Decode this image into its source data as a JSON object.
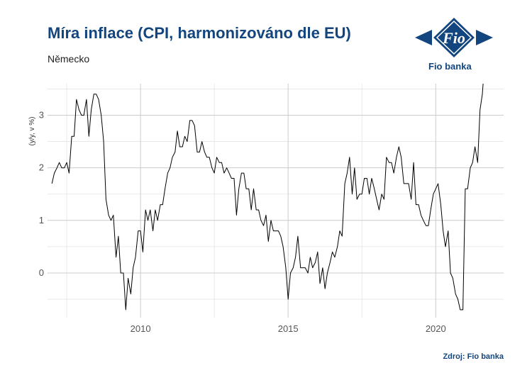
{
  "header": {
    "title": "Míra inflace (CPI, harmonizováno dle EU)",
    "subtitle": "Německo"
  },
  "logo": {
    "icon": "fio-logo-icon",
    "text": "Fio",
    "label": "Fio banka",
    "color": "#13457e"
  },
  "source": "Zdroj: Fio banka",
  "chart_data": {
    "type": "line",
    "title": "Míra inflace (CPI, harmonizováno dle EU)",
    "subtitle": "Německo",
    "xlabel": "",
    "ylabel": "(y/y, v %)",
    "xlim": [
      2006.85,
      2022.3
    ],
    "ylim": [
      -0.85,
      3.6
    ],
    "x_ticks": [
      2010,
      2015,
      2020
    ],
    "y_ticks": [
      0,
      1,
      2,
      3
    ],
    "grid": true,
    "legend": "none",
    "line_color": "#000000",
    "series": [
      {
        "x": [
          2007.0,
          2007.08,
          2007.17,
          2007.25,
          2007.33,
          2007.42,
          2007.5,
          2007.58,
          2007.67,
          2007.75,
          2007.83,
          2007.92,
          2008.0,
          2008.08,
          2008.17,
          2008.25,
          2008.33,
          2008.42,
          2008.5,
          2008.58,
          2008.67,
          2008.75,
          2008.83,
          2008.92,
          2009.0,
          2009.08,
          2009.17,
          2009.25,
          2009.33,
          2009.42,
          2009.5,
          2009.58,
          2009.67,
          2009.75,
          2009.83,
          2009.92,
          2010.0,
          2010.08,
          2010.17,
          2010.25,
          2010.33,
          2010.42,
          2010.5,
          2010.58,
          2010.67,
          2010.75,
          2010.83,
          2010.92,
          2011.0,
          2011.08,
          2011.17,
          2011.25,
          2011.33,
          2011.42,
          2011.5,
          2011.58,
          2011.67,
          2011.75,
          2011.83,
          2011.92,
          2012.0,
          2012.08,
          2012.17,
          2012.25,
          2012.33,
          2012.42,
          2012.5,
          2012.58,
          2012.67,
          2012.75,
          2012.83,
          2012.92,
          2013.0,
          2013.08,
          2013.17,
          2013.25,
          2013.33,
          2013.42,
          2013.5,
          2013.58,
          2013.67,
          2013.75,
          2013.83,
          2013.92,
          2014.0,
          2014.08,
          2014.17,
          2014.25,
          2014.33,
          2014.42,
          2014.5,
          2014.58,
          2014.67,
          2014.75,
          2014.83,
          2014.92,
          2015.0,
          2015.08,
          2015.17,
          2015.25,
          2015.33,
          2015.42,
          2015.5,
          2015.58,
          2015.67,
          2015.75,
          2015.83,
          2015.92,
          2016.0,
          2016.08,
          2016.17,
          2016.25,
          2016.33,
          2016.42,
          2016.5,
          2016.58,
          2016.67,
          2016.75,
          2016.83,
          2016.92,
          2017.0,
          2017.08,
          2017.17,
          2017.25,
          2017.33,
          2017.42,
          2017.5,
          2017.58,
          2017.67,
          2017.75,
          2017.83,
          2017.92,
          2018.0,
          2018.08,
          2018.17,
          2018.25,
          2018.33,
          2018.42,
          2018.5,
          2018.58,
          2018.67,
          2018.75,
          2018.83,
          2018.92,
          2019.0,
          2019.08,
          2019.17,
          2019.25,
          2019.33,
          2019.42,
          2019.5,
          2019.58,
          2019.67,
          2019.75,
          2019.83,
          2019.92,
          2020.0,
          2020.08,
          2020.17,
          2020.25,
          2020.33,
          2020.42,
          2020.5,
          2020.58,
          2020.67,
          2020.75,
          2020.83,
          2020.92,
          2021.0,
          2021.08,
          2021.17,
          2021.25,
          2021.33,
          2021.42,
          2021.5,
          2021.58,
          2021.67
        ],
        "values": [
          1.7,
          1.9,
          2.0,
          2.1,
          2.0,
          2.0,
          2.1,
          1.9,
          2.6,
          2.6,
          3.3,
          3.1,
          3.0,
          3.0,
          3.3,
          2.6,
          3.1,
          3.4,
          3.4,
          3.3,
          3.0,
          2.5,
          1.4,
          1.1,
          1.0,
          1.1,
          0.3,
          0.7,
          0.0,
          0.0,
          -0.7,
          -0.1,
          -0.4,
          0.1,
          0.3,
          0.8,
          0.8,
          0.4,
          1.2,
          1.0,
          1.2,
          0.8,
          1.2,
          1.0,
          1.3,
          1.3,
          1.6,
          1.9,
          2.0,
          2.2,
          2.3,
          2.7,
          2.4,
          2.4,
          2.6,
          2.5,
          2.9,
          2.9,
          2.8,
          2.3,
          2.3,
          2.5,
          2.3,
          2.2,
          2.2,
          2.0,
          1.9,
          2.2,
          2.1,
          2.1,
          1.9,
          2.0,
          1.9,
          1.8,
          1.8,
          1.1,
          1.6,
          1.9,
          1.9,
          1.6,
          1.6,
          1.2,
          1.6,
          1.2,
          1.2,
          1.0,
          0.9,
          1.1,
          0.6,
          1.0,
          0.8,
          0.8,
          0.8,
          0.7,
          0.5,
          0.1,
          -0.5,
          0.0,
          0.1,
          0.3,
          0.7,
          0.1,
          0.1,
          0.1,
          0.0,
          0.3,
          0.1,
          0.2,
          0.4,
          -0.2,
          0.1,
          -0.3,
          0.0,
          0.2,
          0.4,
          0.3,
          0.5,
          0.8,
          0.7,
          1.7,
          1.9,
          2.2,
          1.5,
          2.0,
          1.4,
          1.5,
          1.5,
          1.8,
          1.8,
          1.5,
          1.8,
          1.6,
          1.4,
          1.2,
          1.5,
          1.4,
          2.2,
          2.1,
          2.1,
          1.9,
          2.2,
          2.4,
          2.2,
          1.7,
          1.7,
          1.7,
          1.4,
          2.1,
          1.3,
          1.3,
          1.1,
          1.0,
          0.9,
          0.9,
          1.2,
          1.5,
          1.6,
          1.7,
          1.3,
          0.8,
          0.5,
          0.8,
          0.0,
          -0.1,
          -0.4,
          -0.5,
          -0.7,
          -0.7,
          1.6,
          1.6,
          2.0,
          2.1,
          2.4,
          2.1,
          3.1,
          3.4,
          4.1
        ]
      }
    ]
  }
}
